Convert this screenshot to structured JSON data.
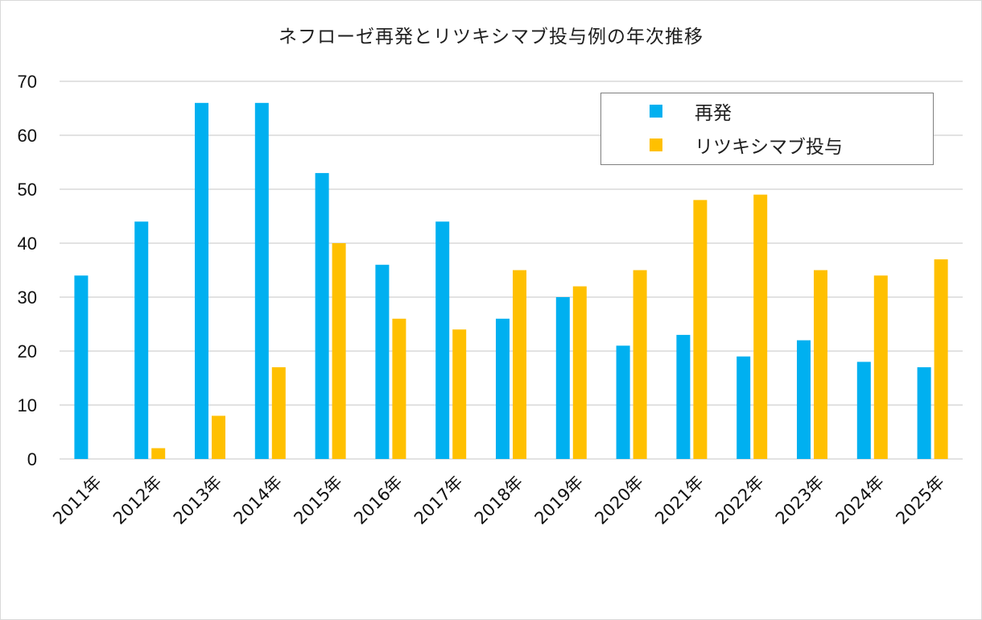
{
  "chart_data": {
    "type": "bar",
    "title": "ネフローゼ再発とリツキシマブ投与例の年次推移",
    "xlabel": "",
    "ylabel": "",
    "ylim": [
      0,
      70
    ],
    "yticks": [
      0,
      10,
      20,
      30,
      40,
      50,
      60,
      70
    ],
    "grid": true,
    "legend_position": "top-right",
    "categories": [
      "2011年",
      "2012年",
      "2013年",
      "2014年",
      "2015年",
      "2016年",
      "2017年",
      "2018年",
      "2019年",
      "2020年",
      "2021年",
      "2022年",
      "2023年",
      "2024年",
      "2025年"
    ],
    "series": [
      {
        "name": "再発",
        "color": "#00B0F0",
        "values": [
          34,
          44,
          66,
          66,
          53,
          36,
          44,
          26,
          30,
          21,
          23,
          19,
          22,
          18,
          17
        ]
      },
      {
        "name": "リツキシマブ投与",
        "color": "#FFC000",
        "values": [
          0,
          2,
          8,
          17,
          40,
          26,
          24,
          35,
          32,
          35,
          48,
          49,
          35,
          34,
          37
        ]
      }
    ]
  }
}
